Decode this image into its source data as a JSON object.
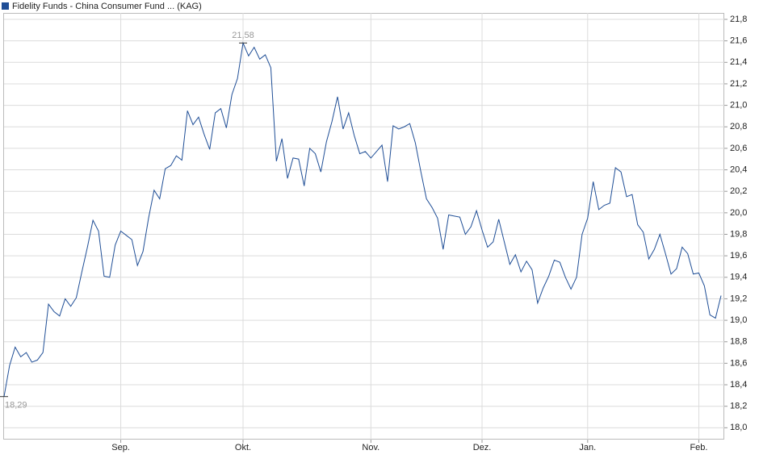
{
  "chart_data": {
    "type": "line",
    "series": [
      {
        "name": "Fidelity Funds - China Consumer Fund ... (KAG)",
        "color": "#1f4e96",
        "values": [
          18.29,
          18.58,
          18.75,
          18.66,
          18.7,
          18.61,
          18.63,
          18.7,
          19.15,
          19.08,
          19.04,
          19.2,
          19.13,
          19.21,
          19.45,
          19.68,
          19.93,
          19.83,
          19.41,
          19.4,
          19.7,
          19.83,
          19.79,
          19.75,
          19.51,
          19.64,
          19.95,
          20.21,
          20.13,
          20.41,
          20.44,
          20.53,
          20.49,
          20.95,
          20.82,
          20.89,
          20.73,
          20.59,
          20.93,
          20.97,
          20.79,
          21.1,
          21.25,
          21.58,
          21.46,
          21.54,
          21.43,
          21.47,
          21.35,
          20.48,
          20.69,
          20.32,
          20.51,
          20.5,
          20.25,
          20.6,
          20.55,
          20.38,
          20.66,
          20.85,
          21.08,
          20.78,
          20.93,
          20.72,
          20.55,
          20.57,
          20.51,
          20.57,
          20.63,
          20.29,
          20.81,
          20.78,
          20.8,
          20.83,
          20.65,
          20.38,
          20.13,
          20.05,
          19.95,
          19.66,
          19.98,
          19.97,
          19.96,
          19.8,
          19.87,
          20.02,
          19.84,
          19.68,
          19.73,
          19.94,
          19.73,
          19.52,
          19.61,
          19.45,
          19.55,
          19.47,
          19.16,
          19.3,
          19.41,
          19.56,
          19.54,
          19.4,
          19.29,
          19.4,
          19.8,
          19.95,
          20.29,
          20.03,
          20.07,
          20.09,
          20.42,
          20.38,
          20.15,
          20.17,
          19.89,
          19.82,
          19.57,
          19.66,
          19.8,
          19.62,
          19.43,
          19.48,
          19.68,
          19.62,
          19.43,
          19.44,
          19.32,
          19.05,
          19.02,
          19.23
        ],
        "value_labels": [
          "18,29",
          null,
          null,
          null,
          null,
          null,
          null,
          null,
          null,
          null,
          null,
          null,
          null,
          null,
          null,
          null,
          null,
          null,
          null,
          null,
          null,
          null,
          null,
          null,
          null,
          null,
          null,
          null,
          null,
          null,
          null,
          null,
          null,
          null,
          null,
          null,
          null,
          null,
          null,
          null,
          null,
          null,
          null,
          "21,58",
          null,
          null,
          null,
          null,
          null,
          null,
          null,
          null,
          null,
          null,
          null,
          null,
          null,
          null,
          null,
          null,
          null,
          null,
          null,
          null,
          null,
          null,
          null,
          null,
          null,
          null,
          null,
          null,
          null,
          null,
          null,
          null,
          null,
          null,
          null,
          null,
          null,
          null,
          null,
          null,
          null,
          null,
          null,
          null,
          null,
          null,
          null,
          null,
          null,
          null,
          null,
          null,
          null,
          null,
          null,
          null,
          null,
          null,
          null,
          null,
          null,
          null,
          null,
          null,
          null,
          null,
          null,
          null,
          null,
          null,
          null,
          null,
          null,
          null,
          null,
          null,
          null,
          null,
          null,
          null,
          null,
          null,
          null,
          null,
          null,
          null
        ]
      }
    ],
    "categories": [
      null,
      null,
      null,
      null,
      null,
      null,
      null,
      null,
      null,
      null,
      null,
      null,
      null,
      null,
      null,
      null,
      null,
      null,
      null,
      null,
      null,
      "Sep.",
      null,
      null,
      null,
      null,
      null,
      null,
      null,
      null,
      null,
      null,
      null,
      null,
      null,
      null,
      null,
      null,
      null,
      null,
      null,
      null,
      null,
      "Okt.",
      null,
      null,
      null,
      null,
      null,
      null,
      null,
      null,
      null,
      null,
      null,
      null,
      null,
      null,
      null,
      null,
      null,
      null,
      null,
      null,
      null,
      null,
      "Nov.",
      null,
      null,
      null,
      null,
      null,
      null,
      null,
      null,
      null,
      null,
      null,
      null,
      null,
      null,
      null,
      null,
      null,
      null,
      null,
      "Dez.",
      null,
      null,
      null,
      null,
      null,
      null,
      null,
      null,
      null,
      null,
      null,
      null,
      null,
      null,
      null,
      null,
      null,
      null,
      "Jan.",
      null,
      null,
      null,
      null,
      null,
      null,
      null,
      null,
      null,
      null,
      null,
      null,
      null,
      null,
      null,
      null,
      null,
      null,
      null,
      "Feb.",
      null,
      null,
      null,
      null
    ],
    "ylim": [
      17.89,
      21.86
    ],
    "yticks": [
      {
        "value": 18.0,
        "label": "18,0"
      },
      {
        "value": 18.2,
        "label": "18,2"
      },
      {
        "value": 18.4,
        "label": "18,4"
      },
      {
        "value": 18.6,
        "label": "18,6"
      },
      {
        "value": 18.8,
        "label": "18,8"
      },
      {
        "value": 19.0,
        "label": "19,0"
      },
      {
        "value": 19.2,
        "label": "19,2"
      },
      {
        "value": 19.4,
        "label": "19,4"
      },
      {
        "value": 19.6,
        "label": "19,6"
      },
      {
        "value": 19.8,
        "label": "19,8"
      },
      {
        "value": 20.0,
        "label": "20,0"
      },
      {
        "value": 20.2,
        "label": "20,2"
      },
      {
        "value": 20.4,
        "label": "20,4"
      },
      {
        "value": 20.6,
        "label": "20,6"
      },
      {
        "value": 20.8,
        "label": "20,8"
      },
      {
        "value": 21.0,
        "label": "21,0"
      },
      {
        "value": 21.2,
        "label": "21,2"
      },
      {
        "value": 21.4,
        "label": "21,4"
      },
      {
        "value": 21.6,
        "label": "21,6"
      },
      {
        "value": 21.8,
        "label": "21,8"
      }
    ],
    "grid": true
  }
}
